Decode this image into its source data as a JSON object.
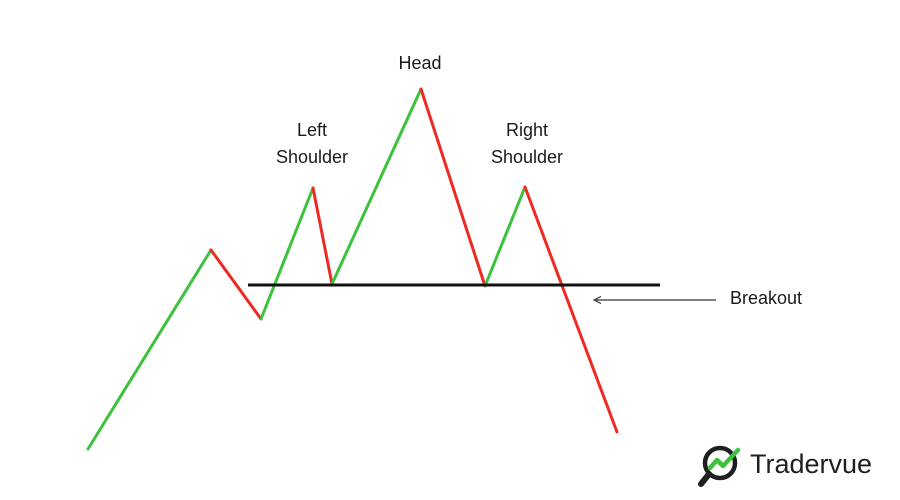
{
  "labels": {
    "head": "Head",
    "left_shoulder_line1": "Left",
    "left_shoulder_line2": "Shoulder",
    "right_shoulder_line1": "Right",
    "right_shoulder_line2": "Shoulder",
    "breakout": "Breakout"
  },
  "brand": {
    "name": "Tradervue",
    "logo": "tradervue-logo-icon"
  },
  "colors": {
    "up": "#3cc23c",
    "down": "#ee2a24",
    "neckline": "#111111",
    "arrow": "#333333",
    "brand_green": "#3cc23c",
    "brand_dark": "#1f1f1f"
  }
}
